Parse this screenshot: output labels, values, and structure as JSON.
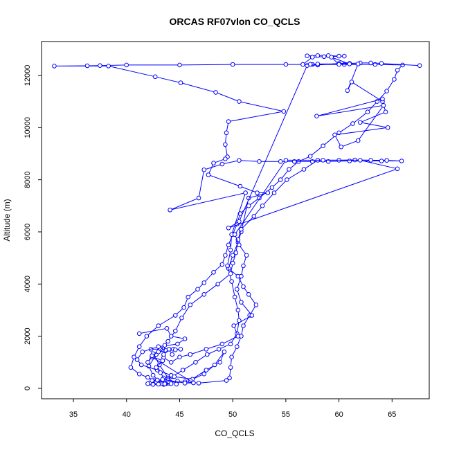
{
  "chart_data": {
    "type": "line",
    "title": "ORCAS RF07vlon CO_QCLS",
    "xlabel": "CO_QCLS",
    "ylabel": "Altitude (m)",
    "xlim": [
      32,
      68.5
    ],
    "ylim": [
      -400,
      13300
    ],
    "xticks": [
      35,
      40,
      45,
      50,
      55,
      60,
      65
    ],
    "yticks": [
      0,
      2000,
      4000,
      6000,
      8000,
      10000,
      12000
    ],
    "grid": false,
    "legend": "none",
    "color": "#0000ff",
    "marker": "circle-open",
    "series": [
      {
        "points": [
          [
            42.2,
            200
          ],
          [
            42.6,
            200
          ],
          [
            42.9,
            200
          ],
          [
            43.2,
            200
          ],
          [
            43.5,
            200
          ],
          [
            43.1,
            250
          ],
          [
            42.6,
            300
          ],
          [
            42.0,
            420
          ],
          [
            41.2,
            550
          ],
          [
            40.4,
            800
          ],
          [
            40.7,
            1200
          ],
          [
            41.2,
            1600
          ],
          [
            41.9,
            2000
          ],
          [
            43.0,
            2400
          ],
          [
            44.6,
            2800
          ],
          [
            45.4,
            3100
          ],
          [
            45.8,
            3500
          ],
          [
            46.7,
            3800
          ],
          [
            47.3,
            4050
          ],
          [
            48.2,
            4450
          ],
          [
            49.0,
            4750
          ],
          [
            49.3,
            5100
          ],
          [
            49.6,
            5500
          ],
          [
            50.0,
            5900
          ],
          [
            50.4,
            6300
          ],
          [
            50.7,
            6700
          ],
          [
            51.5,
            7000
          ],
          [
            52.5,
            7300
          ],
          [
            53.7,
            7700
          ],
          [
            54.5,
            8000
          ],
          [
            55.3,
            8400
          ],
          [
            56.2,
            8700
          ],
          [
            57.3,
            8900
          ],
          [
            58.5,
            9300
          ],
          [
            60.0,
            9800
          ],
          [
            61.3,
            10150
          ],
          [
            62.7,
            10600
          ],
          [
            63.6,
            11000
          ],
          [
            64.5,
            11400
          ],
          [
            65.2,
            11850
          ],
          [
            65.5,
            12200
          ],
          [
            66.0,
            12400
          ],
          [
            63.4,
            12420
          ],
          [
            60.5,
            12420
          ],
          [
            57.5,
            12420
          ],
          [
            55.0,
            12420
          ],
          [
            50.0,
            12420
          ],
          [
            45.0,
            12400
          ],
          [
            40.0,
            12400
          ],
          [
            37.5,
            12380
          ],
          [
            36.3,
            12370
          ],
          [
            33.2,
            12360
          ],
          [
            38.3,
            12360
          ],
          [
            42.7,
            11950
          ],
          [
            45.1,
            11720
          ],
          [
            48.4,
            11350
          ],
          [
            50.6,
            11000
          ],
          [
            54.8,
            10620
          ],
          [
            49.6,
            10230
          ],
          [
            49.4,
            9800
          ],
          [
            49.3,
            9350
          ],
          [
            49.5,
            8880
          ],
          [
            49.3,
            8800
          ],
          [
            48.2,
            8640
          ],
          [
            47.7,
            8190
          ],
          [
            50.7,
            7750
          ],
          [
            52.3,
            7500
          ],
          [
            53.3,
            7500
          ],
          [
            51.5,
            7300
          ],
          [
            50.8,
            6000
          ],
          [
            50.5,
            5600
          ],
          [
            50.0,
            5100
          ],
          [
            49.6,
            4600
          ],
          [
            50.5,
            4300
          ],
          [
            51.0,
            3900
          ],
          [
            51.5,
            3600
          ],
          [
            52.2,
            3200
          ],
          [
            51.6,
            2800
          ],
          [
            51.0,
            2400
          ],
          [
            50.8,
            2000
          ],
          [
            50.4,
            1600
          ],
          [
            49.9,
            1200
          ],
          [
            49.8,
            800
          ],
          [
            49.7,
            400
          ],
          [
            49.4,
            300
          ],
          [
            46.8,
            200
          ],
          [
            45.5,
            250
          ],
          [
            44.8,
            280
          ],
          [
            43.9,
            200
          ],
          [
            43.7,
            180
          ],
          [
            43.5,
            150
          ]
        ]
      },
      {
        "points": [
          [
            43.3,
            180
          ],
          [
            42.5,
            500
          ],
          [
            42.1,
            850
          ],
          [
            42.8,
            1300
          ],
          [
            43.9,
            1800
          ],
          [
            44.6,
            2200
          ],
          [
            45.2,
            2700
          ],
          [
            46.0,
            3200
          ],
          [
            47.3,
            3600
          ],
          [
            48.6,
            4000
          ],
          [
            49.8,
            4400
          ],
          [
            50.0,
            4800
          ],
          [
            50.3,
            5200
          ],
          [
            50.5,
            5700
          ],
          [
            50.8,
            6100
          ],
          [
            52.0,
            6600
          ],
          [
            52.8,
            7000
          ],
          [
            53.9,
            7500
          ],
          [
            55.1,
            8000
          ],
          [
            56.7,
            8400
          ],
          [
            58.0,
            8750
          ],
          [
            60.0,
            8750
          ],
          [
            61.5,
            8760
          ],
          [
            63.0,
            8750
          ],
          [
            64.5,
            8740
          ],
          [
            65.9,
            8720
          ],
          [
            64.0,
            8720
          ],
          [
            61.0,
            8720
          ],
          [
            59.0,
            8700
          ],
          [
            57.5,
            8700
          ],
          [
            55.8,
            8700
          ],
          [
            54.5,
            8700
          ],
          [
            52.5,
            8700
          ],
          [
            50.6,
            8740
          ],
          [
            49.0,
            8600
          ],
          [
            47.3,
            8380
          ],
          [
            46.8,
            7300
          ],
          [
            44.1,
            6840
          ],
          [
            51.2,
            7500
          ],
          [
            49.9,
            5900
          ],
          [
            49.8,
            5300
          ],
          [
            49.5,
            4700
          ],
          [
            49.9,
            4100
          ],
          [
            50.2,
            3500
          ],
          [
            50.5,
            3000
          ],
          [
            50.6,
            2600
          ],
          [
            50.4,
            2100
          ],
          [
            49.8,
            1700
          ],
          [
            48.7,
            1500
          ],
          [
            47.6,
            1300
          ],
          [
            46.5,
            1000
          ],
          [
            45.3,
            700
          ],
          [
            44.3,
            450
          ],
          [
            43.6,
            330
          ],
          [
            42.8,
            250
          ]
        ]
      },
      {
        "points": [
          [
            42.3,
            1500
          ],
          [
            43.2,
            1500
          ],
          [
            44.4,
            1500
          ],
          [
            45.1,
            1500
          ],
          [
            44.6,
            1480
          ],
          [
            43.7,
            1450
          ],
          [
            42.5,
            1330
          ],
          [
            43.1,
            900
          ],
          [
            43.9,
            400
          ],
          [
            44.7,
            160
          ]
        ]
      },
      {
        "points": [
          [
            43.5,
            1180
          ],
          [
            44.2,
            1000
          ],
          [
            45.0,
            1200
          ],
          [
            46.0,
            1300
          ],
          [
            47.5,
            1500
          ],
          [
            49.0,
            1700
          ],
          [
            50.5,
            2000
          ],
          [
            50.1,
            2400
          ],
          [
            51.8,
            2800
          ],
          [
            50.8,
            3300
          ],
          [
            50.4,
            3800
          ],
          [
            50.8,
            4300
          ],
          [
            51.0,
            4700
          ],
          [
            51.3,
            5100
          ],
          [
            50.6,
            5500
          ],
          [
            50.2,
            5900
          ],
          [
            55.0,
            8750
          ],
          [
            58.5,
            8750
          ],
          [
            62.0,
            8750
          ],
          [
            65.5,
            8420
          ],
          [
            49.6,
            6150
          ],
          [
            50.6,
            6400
          ],
          [
            57.0,
            12380
          ],
          [
            58.0,
            12400
          ],
          [
            60.0,
            12460
          ],
          [
            61.0,
            12460
          ],
          [
            62.0,
            12480
          ],
          [
            63.0,
            12480
          ],
          [
            64.0,
            12460
          ],
          [
            67.6,
            12380
          ]
        ]
      },
      {
        "points": [
          [
            57.0,
            12750
          ],
          [
            58.0,
            12760
          ],
          [
            59.0,
            12760
          ],
          [
            60.0,
            12740
          ],
          [
            60.5,
            12740
          ],
          [
            58.6,
            12720
          ],
          [
            57.5,
            12700
          ],
          [
            56.6,
            12420
          ],
          [
            57.3,
            12430
          ],
          [
            58.0,
            12440
          ],
          [
            61.0,
            12440
          ],
          [
            59.3,
            12700
          ],
          [
            60.0,
            12420
          ],
          [
            61.8,
            12440
          ],
          [
            60.8,
            11420
          ],
          [
            61.2,
            11750
          ],
          [
            64.1,
            11000
          ],
          [
            64.4,
            10600
          ],
          [
            62.0,
            10200
          ],
          [
            64.6,
            10000
          ],
          [
            59.6,
            9720
          ],
          [
            60.2,
            9260
          ],
          [
            61.8,
            9500
          ],
          [
            64.2,
            10850
          ],
          [
            57.9,
            10440
          ],
          [
            64.1,
            11100
          ]
        ]
      },
      {
        "points": [
          [
            41.2,
            2100
          ],
          [
            43.8,
            2300
          ],
          [
            44.2,
            2000
          ],
          [
            45.5,
            1900
          ],
          [
            44.8,
            1700
          ],
          [
            43.0,
            1600
          ],
          [
            41.5,
            1400
          ],
          [
            41.0,
            1100
          ],
          [
            41.4,
            900
          ],
          [
            42.9,
            700
          ],
          [
            44.2,
            500
          ],
          [
            43.9,
            300
          ],
          [
            44.0,
            200
          ]
        ]
      },
      {
        "points": [
          [
            42.5,
            1200
          ],
          [
            43.4,
            1060
          ],
          [
            42.8,
            800
          ],
          [
            43.2,
            600
          ],
          [
            43.5,
            400
          ],
          [
            44.5,
            450
          ],
          [
            46.2,
            350
          ],
          [
            47.3,
            550
          ],
          [
            48.3,
            900
          ],
          [
            49.2,
            1400
          ],
          [
            48.8,
            1000
          ],
          [
            47.5,
            700
          ],
          [
            46.0,
            300
          ]
        ]
      },
      {
        "points": [
          [
            42.0,
            180
          ],
          [
            42.5,
            150
          ],
          [
            43.0,
            160
          ],
          [
            43.6,
            170
          ],
          [
            44.2,
            180
          ],
          [
            42.4,
            300
          ],
          [
            42.9,
            320
          ],
          [
            43.4,
            340
          ],
          [
            45.5,
            200
          ],
          [
            46.3,
            210
          ],
          [
            42.4,
            1200
          ],
          [
            42.0,
            1000
          ],
          [
            42.4,
            1250
          ],
          [
            43.0,
            1400
          ],
          [
            43.6,
            1650
          ],
          [
            43.5,
            1300
          ],
          [
            44.0,
            1500
          ],
          [
            44.3,
            1300
          ]
        ]
      }
    ]
  }
}
